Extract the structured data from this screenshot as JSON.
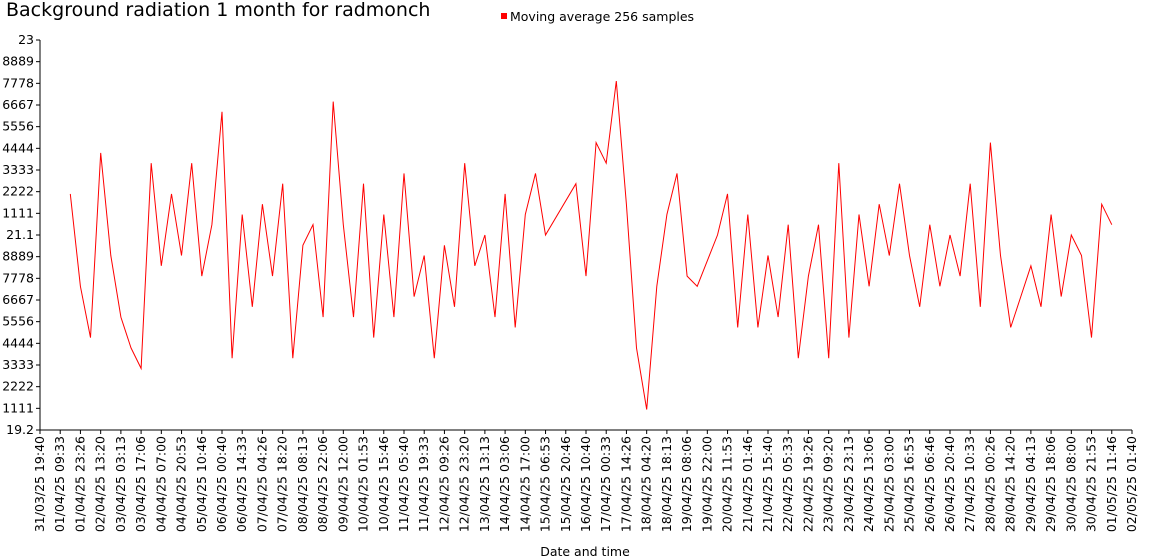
{
  "chart_data": {
    "type": "line",
    "title": "Background radiation 1 month for radmonch",
    "xlabel": "Date and time",
    "legend": "top",
    "series": [
      {
        "name": "Moving average 256 samples",
        "color": "#ff0000",
        "x": [
          "01/04/25 16:30",
          "01/04/25 23:26",
          "02/04/25 06:23",
          "02/04/25 13:20",
          "02/04/25 20:17",
          "03/04/25 03:13",
          "03/04/25 10:10",
          "03/04/25 17:06",
          "04/04/25 00:03",
          "04/04/25 07:00",
          "04/04/25 13:57",
          "04/04/25 20:53",
          "05/04/25 03:50",
          "05/04/25 10:46",
          "05/04/25 17:43",
          "06/04/25 00:40",
          "06/04/25 07:37",
          "06/04/25 14:33",
          "06/04/25 21:30",
          "07/04/25 04:26",
          "07/04/25 11:23",
          "07/04/25 18:20",
          "08/04/25 01:17",
          "08/04/25 08:13",
          "08/04/25 15:10",
          "08/04/25 22:06",
          "09/04/25 05:03",
          "09/04/25 12:00",
          "09/04/25 18:57",
          "10/04/25 01:53",
          "10/04/25 08:50",
          "10/04/25 15:46",
          "10/04/25 22:43",
          "11/04/25 05:40",
          "11/04/25 12:37",
          "11/04/25 19:33",
          "12/04/25 02:30",
          "12/04/25 09:26",
          "12/04/25 16:23",
          "12/04/25 23:20",
          "13/04/25 06:17",
          "13/04/25 13:13",
          "13/04/25 20:10",
          "14/04/25 03:06",
          "14/04/25 10:03",
          "14/04/25 17:00",
          "14/04/25 23:57",
          "15/04/25 06:53",
          "16/04/25 03:43",
          "16/04/25 10:40",
          "16/04/25 17:37",
          "17/04/25 00:33",
          "17/04/25 07:30",
          "17/04/25 14:26",
          "17/04/25 21:23",
          "18/04/25 04:20",
          "18/04/25 11:17",
          "18/04/25 18:13",
          "19/04/25 01:10",
          "19/04/25 08:06",
          "19/04/25 15:03",
          "20/04/25 04:57",
          "20/04/25 11:53",
          "20/04/25 18:50",
          "21/04/25 01:46",
          "21/04/25 08:43",
          "21/04/25 15:40",
          "21/04/25 22:37",
          "22/04/25 05:33",
          "22/04/25 12:30",
          "22/04/25 19:26",
          "23/04/25 02:23",
          "23/04/25 09:20",
          "23/04/25 16:17",
          "23/04/25 23:13",
          "24/04/25 06:10",
          "24/04/25 13:06",
          "24/04/25 20:03",
          "25/04/25 03:00",
          "25/04/25 09:57",
          "25/04/25 16:53",
          "25/04/25 23:50",
          "26/04/25 06:46",
          "26/04/25 13:43",
          "26/04/25 20:40",
          "27/04/25 03:37",
          "27/04/25 10:33",
          "27/04/25 17:30",
          "28/04/25 00:26",
          "28/04/25 07:23",
          "28/04/25 14:20",
          "28/04/25 21:17",
          "29/04/25 04:13",
          "29/04/25 11:10",
          "29/04/25 18:06",
          "30/04/25 01:03",
          "30/04/25 08:00",
          "30/04/25 14:57",
          "30/04/25 21:53",
          "01/05/25 04:50",
          "01/05/25 11:46"
        ],
        "values": [
          21.5,
          20.6,
          20.1,
          21.9,
          20.9,
          20.3,
          20.0,
          19.8,
          21.8,
          20.8,
          21.5,
          20.9,
          21.8,
          20.7,
          21.2,
          22.3,
          19.9,
          21.3,
          20.4,
          21.4,
          20.7,
          21.6,
          19.9,
          21.0,
          21.2,
          20.3,
          22.4,
          21.2,
          20.3,
          21.6,
          20.1,
          21.3,
          20.3,
          21.7,
          20.5,
          20.9,
          19.9,
          21.0,
          20.4,
          21.8,
          20.8,
          21.1,
          20.3,
          21.5,
          20.2,
          21.3,
          21.7,
          21.1,
          21.6,
          20.7,
          22.0,
          21.8,
          22.6,
          21.4,
          20.0,
          19.4,
          20.6,
          21.3,
          21.7,
          20.7,
          20.6,
          21.1,
          21.5,
          20.2,
          21.3,
          20.2,
          20.9,
          20.3,
          21.2,
          19.9,
          20.7,
          21.2,
          19.9,
          21.8,
          20.1,
          21.3,
          20.6,
          21.4,
          20.9,
          21.6,
          20.9,
          20.4,
          21.2,
          20.6,
          21.1,
          20.7,
          21.6,
          20.4,
          22.0,
          20.9,
          20.2,
          20.5,
          20.8,
          20.4,
          21.3,
          20.5,
          21.1,
          20.9,
          20.1,
          21.4,
          21.2
        ]
      }
    ],
    "ylim": [
      19.2,
      23
    ],
    "yticks": [
      23,
      {
        "value": 22.7889,
        "label": "8889"
      },
      {
        "value": 22.5778,
        "label": "7778"
      },
      {
        "value": 22.3667,
        "label": "6667"
      },
      {
        "value": 22.1556,
        "label": "5556"
      },
      {
        "value": 21.9444,
        "label": "4444"
      },
      {
        "value": 21.7333,
        "label": "3333"
      },
      {
        "value": 21.5222,
        "label": "2222"
      },
      {
        "value": 21.3111,
        "label": "1111"
      },
      21.1,
      {
        "value": 20.8889,
        "label": "8889"
      },
      {
        "value": 20.6778,
        "label": "7778"
      },
      {
        "value": 20.4667,
        "label": "6667"
      },
      {
        "value": 20.2556,
        "label": "5556"
      },
      {
        "value": 20.0444,
        "label": "4444"
      },
      {
        "value": 19.8333,
        "label": "3333"
      },
      {
        "value": 19.6222,
        "label": "2222"
      },
      {
        "value": 19.4111,
        "label": "1111"
      },
      19.2
    ],
    "xticks": [
      "31/03/25 19:40",
      "01/04/25 09:33",
      "01/04/25 23:26",
      "02/04/25 13:20",
      "03/04/25 03:13",
      "03/04/25 17:06",
      "04/04/25 07:00",
      "04/04/25 20:53",
      "05/04/25 10:46",
      "06/04/25 00:40",
      "06/04/25 14:33",
      "07/04/25 04:26",
      "07/04/25 18:20",
      "08/04/25 08:13",
      "08/04/25 22:06",
      "09/04/25 12:00",
      "10/04/25 01:53",
      "10/04/25 15:46",
      "11/04/25 05:40",
      "11/04/25 19:33",
      "12/04/25 09:26",
      "12/04/25 23:20",
      "13/04/25 13:13",
      "14/04/25 03:06",
      "14/04/25 17:00",
      "15/04/25 06:53",
      "15/04/25 20:46",
      "16/04/25 10:40",
      "17/04/25 00:33",
      "17/04/25 14:26",
      "18/04/25 04:20",
      "18/04/25 18:13",
      "19/04/25 08:06",
      "19/04/25 22:00",
      "20/04/25 11:53",
      "21/04/25 01:46",
      "21/04/25 15:40",
      "22/04/25 05:33",
      "22/04/25 19:26",
      "23/04/25 09:20",
      "23/04/25 23:13",
      "24/04/25 13:06",
      "25/04/25 03:00",
      "25/04/25 16:53",
      "26/04/25 06:46",
      "26/04/25 20:40",
      "27/04/25 10:33",
      "28/04/25 00:26",
      "28/04/25 14:20",
      "29/04/25 04:13",
      "29/04/25 18:06",
      "30/04/25 08:00",
      "30/04/25 21:53",
      "01/05/25 11:46",
      "02/05/25 01:40"
    ]
  }
}
